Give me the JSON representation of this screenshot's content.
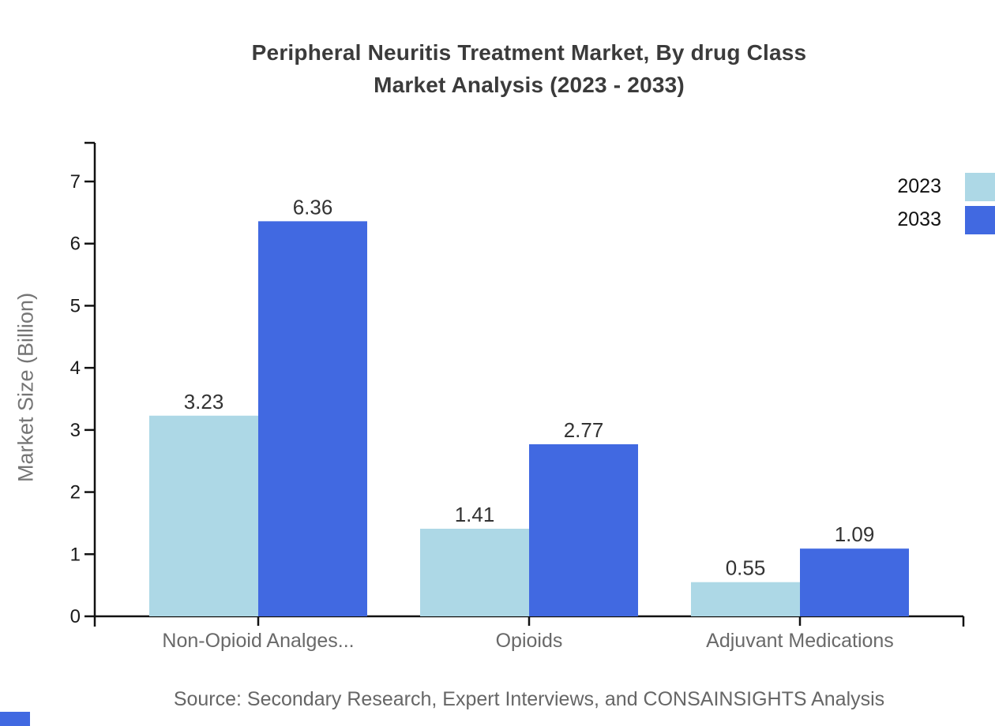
{
  "title": {
    "line1": "Peripheral Neuritis Treatment Market, By drug Class",
    "line2": "Market Analysis (2023 - 2033)"
  },
  "source_note": "Source: Secondary Research, Expert Interviews, and CONSAINSIGHTS Analysis",
  "legend": {
    "items": [
      {
        "label": "2023",
        "color": "#ADD8E6"
      },
      {
        "label": "2033",
        "color": "#4169E1"
      }
    ]
  },
  "chart_data": {
    "type": "bar",
    "title": "Peripheral Neuritis Treatment Market, By drug Class Market Analysis (2023 - 2033)",
    "categories": [
      "Non-Opioid Analges...",
      "Opioids",
      "Adjuvant Medications"
    ],
    "series": [
      {
        "name": "2023",
        "color": "#ADD8E6",
        "values": [
          3.23,
          1.41,
          0.55
        ]
      },
      {
        "name": "2033",
        "color": "#4169E1",
        "values": [
          6.36,
          2.77,
          1.09
        ]
      }
    ],
    "xlabel": "",
    "ylabel": "Market Size (Billion)",
    "ylim": [
      0,
      7
    ],
    "yticks": [
      0,
      1,
      2,
      3,
      4,
      5,
      6,
      7
    ],
    "grid": false,
    "legend_position": "top-right",
    "value_labels_shown": true
  },
  "colors": {
    "background": "#ffffff",
    "axis": "#111111",
    "tick_label": "#1a1a1a",
    "category_label": "#696969",
    "value_label": "#333333",
    "title": "#3b3b3b",
    "source": "#666666",
    "y_axis_title": "#757575",
    "corner_mark": "#4169E1"
  }
}
